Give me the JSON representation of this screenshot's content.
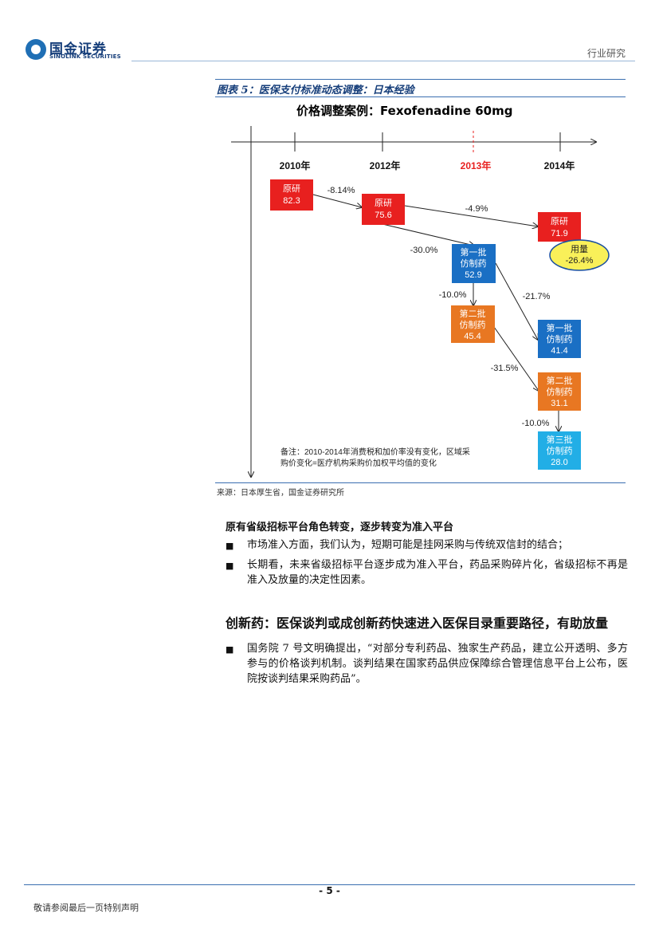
{
  "header": {
    "logo_cn": "国金证券",
    "logo_en": "SINOLINK SECURITIES",
    "section": "行业研究"
  },
  "figure": {
    "label": "图表 5：医保支付标准动态调整：日本经验",
    "chart_title": "价格调整案例：Fexofenadine  60mg",
    "years": [
      "2010年",
      "2012年",
      "2013年",
      "2014年"
    ],
    "boxes": [
      {
        "line1": "原研",
        "line2": "",
        "value": "82.3",
        "color": "#e8201f"
      },
      {
        "line1": "原研",
        "line2": "",
        "value": "75.6",
        "color": "#e8201f"
      },
      {
        "line1": "原研",
        "line2": "",
        "value": "71.9",
        "color": "#e8201f"
      },
      {
        "line1": "第一批",
        "line2": "仿制药",
        "value": "52.9",
        "color": "#1a6fc4"
      },
      {
        "line1": "第二批",
        "line2": "仿制药",
        "value": "45.4",
        "color": "#e87722"
      },
      {
        "line1": "第一批",
        "line2": "仿制药",
        "value": "41.4",
        "color": "#1a6fc4"
      },
      {
        "line1": "第二批",
        "line2": "仿制药",
        "value": "31.1",
        "color": "#e87722"
      },
      {
        "line1": "第三批",
        "line2": "仿制药",
        "value": "28.0",
        "color": "#22aee6"
      }
    ],
    "changes": [
      "-8.14%",
      "-4.9%",
      "-30.0%",
      "-10.0%",
      "-21.7%",
      "-31.5%",
      "-10.0%"
    ],
    "usage_label": "用量",
    "usage_value": "-26.4%",
    "note_line1": "备注：2010-2014年消费税和加价率没有变化，区域采",
    "note_line2": "购价变化=医疗机构采购价加权平均值的变化",
    "source": "来源：日本厚生省，国金证券研究所"
  },
  "section1": {
    "heading": "原有省级招标平台角色转变，逐步转变为准入平台",
    "bullets": [
      "市场准入方面，我们认为，短期可能是挂网采购与传统双信封的结合；",
      "长期看，未来省级招标平台逐步成为准入平台，药品采购碎片化，省级招标不再是准入及放量的决定性因素。"
    ]
  },
  "section2": {
    "heading": "创新药：医保谈判或成创新药快速进入医保目录重要路径，有助放量",
    "bullets": [
      "国务院 7 号文明确提出，“对部分专利药品、独家生产药品，建立公开透明、多方参与的价格谈判机制。谈判结果在国家药品供应保障综合管理信息平台上公布，医院按谈判结果采购药品”。"
    ]
  },
  "footer": {
    "page": "- 5 -",
    "note": "敬请参阅最后一页特别声明"
  }
}
